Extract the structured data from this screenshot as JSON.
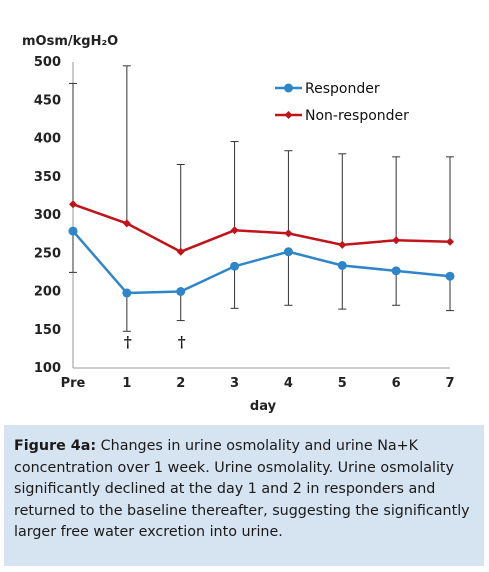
{
  "chart_data": {
    "type": "line",
    "ylabel": "mOsm/kgH₂O",
    "xlabel": "day",
    "categories": [
      "Pre",
      "1",
      "2",
      "3",
      "4",
      "5",
      "6",
      "7"
    ],
    "ylim": [
      100,
      500
    ],
    "yticks": [
      100,
      150,
      200,
      250,
      300,
      350,
      400,
      450,
      500
    ],
    "grid": false,
    "legend_position": "top-right",
    "series": [
      {
        "name": "Responder",
        "color": "#2e86c8",
        "marker": "circle",
        "values": [
          279,
          198,
          200,
          233,
          252,
          234,
          227,
          220
        ],
        "error_low": [
          225,
          148,
          162,
          178,
          182,
          177,
          182,
          175
        ]
      },
      {
        "name": "Non-responder",
        "color": "#c0141a",
        "marker": "diamond",
        "values": [
          314,
          289,
          252,
          280,
          276,
          261,
          267,
          265
        ],
        "error_high": [
          472,
          495,
          366,
          396,
          384,
          380,
          376,
          376
        ]
      }
    ],
    "annotations": [
      {
        "text": "†",
        "x": "1"
      },
      {
        "text": "†",
        "x": "2"
      }
    ]
  },
  "caption": {
    "label": "Figure 4a:",
    "text": " Changes in urine osmolality and urine Na+K concentration over 1 week. Urine osmolality. Urine osmolality significantly declined at the day 1 and 2 in responders and returned to the baseline thereafter, suggesting the significantly larger free water excretion into urine."
  }
}
